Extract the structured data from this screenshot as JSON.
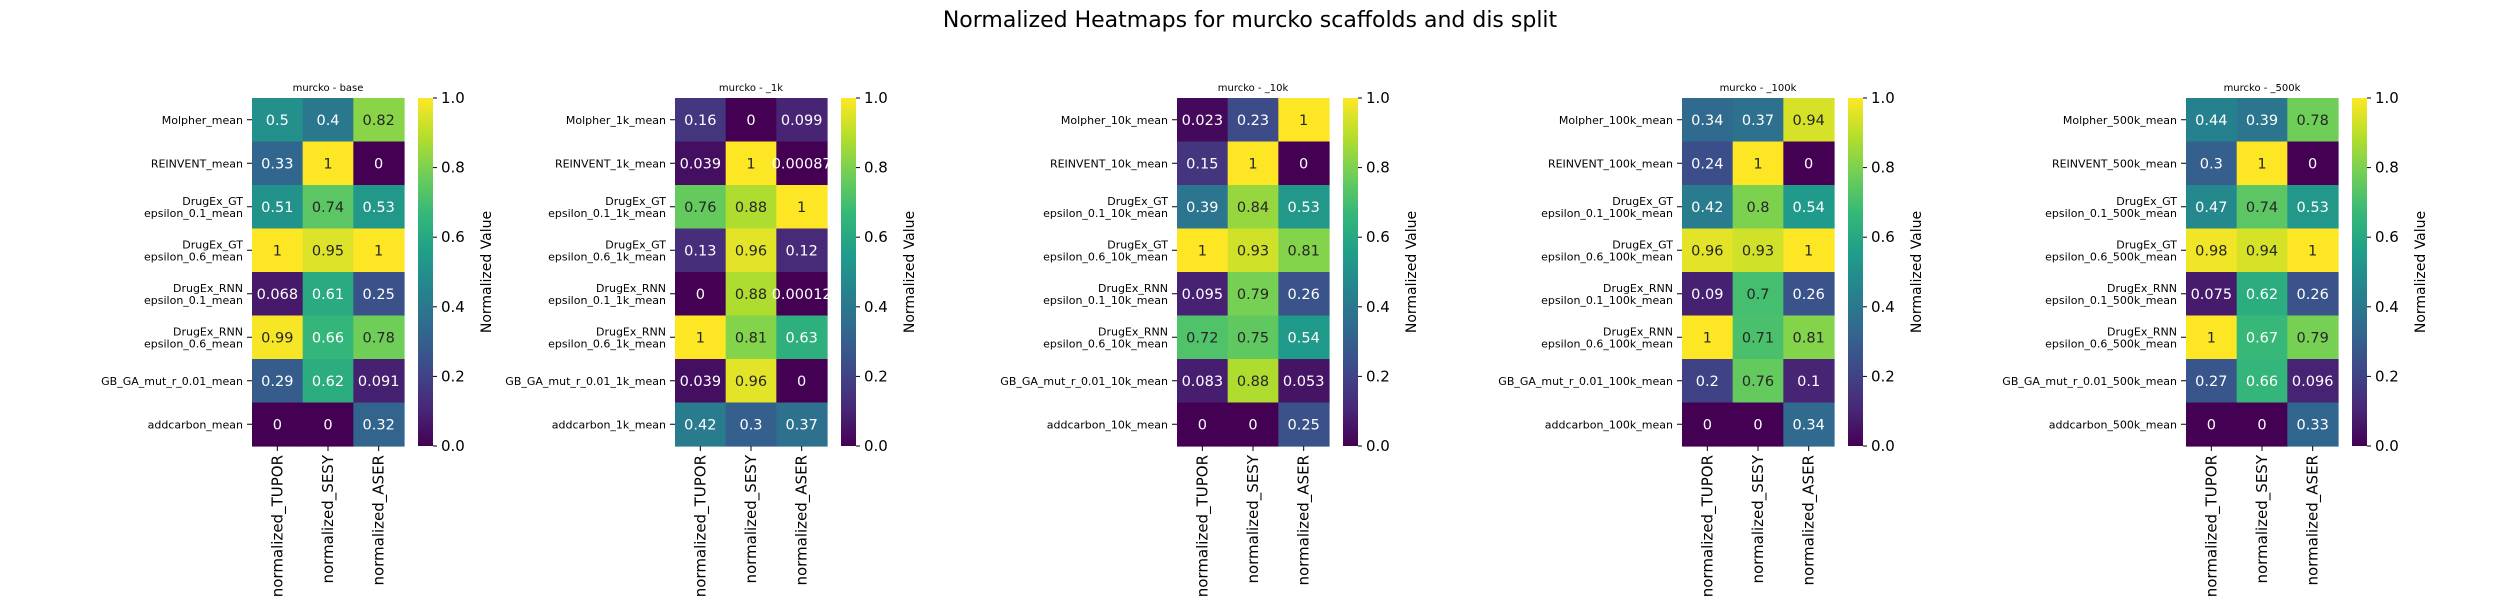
{
  "title": "Normalized Heatmaps for murcko scaffolds and dis split",
  "colormap": [
    "#440154",
    "#482878",
    "#3e4989",
    "#31688e",
    "#26828e",
    "#1f9e89",
    "#35b779",
    "#6ece58",
    "#b5de2b",
    "#fde725"
  ],
  "chart_data": [
    {
      "type": "heatmap",
      "title": "murcko - base",
      "columns": [
        "normalized_TUPOR",
        "normalized_SESY",
        "normalized_ASER"
      ],
      "rows": [
        [
          "Molpher_mean"
        ],
        [
          "REINVENT_mean"
        ],
        [
          "DrugEx_GT",
          "epsilon_0.1_mean"
        ],
        [
          "DrugEx_GT",
          "epsilon_0.6_mean"
        ],
        [
          "DrugEx_RNN",
          "epsilon_0.1_mean"
        ],
        [
          "DrugEx_RNN",
          "epsilon_0.6_mean"
        ],
        [
          "GB_GA_mut_r_0.01_mean"
        ],
        [
          "addcarbon_mean"
        ]
      ],
      "values": [
        [
          0.5,
          0.4,
          0.82
        ],
        [
          0.33,
          1,
          0
        ],
        [
          0.51,
          0.74,
          0.53
        ],
        [
          1,
          0.95,
          1
        ],
        [
          0.068,
          0.61,
          0.25
        ],
        [
          0.99,
          0.66,
          0.78
        ],
        [
          0.29,
          0.62,
          0.091
        ],
        [
          0,
          0,
          0.32
        ]
      ],
      "labels": [
        [
          "0.5",
          "0.4",
          "0.82"
        ],
        [
          "0.33",
          "1",
          "0"
        ],
        [
          "0.51",
          "0.74",
          "0.53"
        ],
        [
          "1",
          "0.95",
          "1"
        ],
        [
          "0.068",
          "0.61",
          "0.25"
        ],
        [
          "0.99",
          "0.66",
          "0.78"
        ],
        [
          "0.29",
          "0.62",
          "0.091"
        ],
        [
          "0",
          "0",
          "0.32"
        ]
      ],
      "colorbar": {
        "label": "Normalized Value",
        "range": [
          0,
          1
        ],
        "ticks": [
          "0.0",
          "0.2",
          "0.4",
          "0.6",
          "0.8",
          "1.0"
        ]
      }
    },
    {
      "type": "heatmap",
      "title": "murcko - _1k",
      "columns": [
        "normalized_TUPOR",
        "normalized_SESY",
        "normalized_ASER"
      ],
      "rows": [
        [
          "Molpher_1k_mean"
        ],
        [
          "REINVENT_1k_mean"
        ],
        [
          "DrugEx_GT",
          "epsilon_0.1_1k_mean"
        ],
        [
          "DrugEx_GT",
          "epsilon_0.6_1k_mean"
        ],
        [
          "DrugEx_RNN",
          "epsilon_0.1_1k_mean"
        ],
        [
          "DrugEx_RNN",
          "epsilon_0.6_1k_mean"
        ],
        [
          "GB_GA_mut_r_0.01_1k_mean"
        ],
        [
          "addcarbon_1k_mean"
        ]
      ],
      "values": [
        [
          0.16,
          0,
          0.099
        ],
        [
          0.039,
          1,
          0.00087
        ],
        [
          0.76,
          0.88,
          1
        ],
        [
          0.13,
          0.96,
          0.12
        ],
        [
          0,
          0.88,
          0.00012
        ],
        [
          1,
          0.81,
          0.63
        ],
        [
          0.039,
          0.96,
          0
        ],
        [
          0.42,
          0.3,
          0.37
        ]
      ],
      "labels": [
        [
          "0.16",
          "0",
          "0.099"
        ],
        [
          "0.039",
          "1",
          "0.00087"
        ],
        [
          "0.76",
          "0.88",
          "1"
        ],
        [
          "0.13",
          "0.96",
          "0.12"
        ],
        [
          "0",
          "0.88",
          "0.00012"
        ],
        [
          "1",
          "0.81",
          "0.63"
        ],
        [
          "0.039",
          "0.96",
          "0"
        ],
        [
          "0.42",
          "0.3",
          "0.37"
        ]
      ],
      "colorbar": {
        "label": "Normalized Value",
        "range": [
          0,
          1
        ],
        "ticks": [
          "0.0",
          "0.2",
          "0.4",
          "0.6",
          "0.8",
          "1.0"
        ]
      }
    },
    {
      "type": "heatmap",
      "title": "murcko - _10k",
      "columns": [
        "normalized_TUPOR",
        "normalized_SESY",
        "normalized_ASER"
      ],
      "rows": [
        [
          "Molpher_10k_mean"
        ],
        [
          "REINVENT_10k_mean"
        ],
        [
          "DrugEx_GT",
          "epsilon_0.1_10k_mean"
        ],
        [
          "DrugEx_GT",
          "epsilon_0.6_10k_mean"
        ],
        [
          "DrugEx_RNN",
          "epsilon_0.1_10k_mean"
        ],
        [
          "DrugEx_RNN",
          "epsilon_0.6_10k_mean"
        ],
        [
          "GB_GA_mut_r_0.01_10k_mean"
        ],
        [
          "addcarbon_10k_mean"
        ]
      ],
      "values": [
        [
          0.023,
          0.23,
          1
        ],
        [
          0.15,
          1,
          0
        ],
        [
          0.39,
          0.84,
          0.53
        ],
        [
          1,
          0.93,
          0.81
        ],
        [
          0.095,
          0.79,
          0.26
        ],
        [
          0.72,
          0.75,
          0.54
        ],
        [
          0.083,
          0.88,
          0.053
        ],
        [
          0,
          0,
          0.25
        ]
      ],
      "labels": [
        [
          "0.023",
          "0.23",
          "1"
        ],
        [
          "0.15",
          "1",
          "0"
        ],
        [
          "0.39",
          "0.84",
          "0.53"
        ],
        [
          "1",
          "0.93",
          "0.81"
        ],
        [
          "0.095",
          "0.79",
          "0.26"
        ],
        [
          "0.72",
          "0.75",
          "0.54"
        ],
        [
          "0.083",
          "0.88",
          "0.053"
        ],
        [
          "0",
          "0",
          "0.25"
        ]
      ],
      "colorbar": {
        "label": "Normalized Value",
        "range": [
          0,
          1
        ],
        "ticks": [
          "0.0",
          "0.2",
          "0.4",
          "0.6",
          "0.8",
          "1.0"
        ]
      }
    },
    {
      "type": "heatmap",
      "title": "murcko - _100k",
      "columns": [
        "normalized_TUPOR",
        "normalized_SESY",
        "normalized_ASER"
      ],
      "rows": [
        [
          "Molpher_100k_mean"
        ],
        [
          "REINVENT_100k_mean"
        ],
        [
          "DrugEx_GT",
          "epsilon_0.1_100k_mean"
        ],
        [
          "DrugEx_GT",
          "epsilon_0.6_100k_mean"
        ],
        [
          "DrugEx_RNN",
          "epsilon_0.1_100k_mean"
        ],
        [
          "DrugEx_RNN",
          "epsilon_0.6_100k_mean"
        ],
        [
          "GB_GA_mut_r_0.01_100k_mean"
        ],
        [
          "addcarbon_100k_mean"
        ]
      ],
      "values": [
        [
          0.34,
          0.37,
          0.94
        ],
        [
          0.24,
          1,
          0
        ],
        [
          0.42,
          0.8,
          0.54
        ],
        [
          0.96,
          0.93,
          1
        ],
        [
          0.09,
          0.7,
          0.26
        ],
        [
          1,
          0.71,
          0.81
        ],
        [
          0.2,
          0.76,
          0.1
        ],
        [
          0,
          0,
          0.34
        ]
      ],
      "labels": [
        [
          "0.34",
          "0.37",
          "0.94"
        ],
        [
          "0.24",
          "1",
          "0"
        ],
        [
          "0.42",
          "0.8",
          "0.54"
        ],
        [
          "0.96",
          "0.93",
          "1"
        ],
        [
          "0.09",
          "0.7",
          "0.26"
        ],
        [
          "1",
          "0.71",
          "0.81"
        ],
        [
          "0.2",
          "0.76",
          "0.1"
        ],
        [
          "0",
          "0",
          "0.34"
        ]
      ],
      "colorbar": {
        "label": "Normalized Value",
        "range": [
          0,
          1
        ],
        "ticks": [
          "0.0",
          "0.2",
          "0.4",
          "0.6",
          "0.8",
          "1.0"
        ]
      }
    },
    {
      "type": "heatmap",
      "title": "murcko - _500k",
      "columns": [
        "normalized_TUPOR",
        "normalized_SESY",
        "normalized_ASER"
      ],
      "rows": [
        [
          "Molpher_500k_mean"
        ],
        [
          "REINVENT_500k_mean"
        ],
        [
          "DrugEx_GT",
          "epsilon_0.1_500k_mean"
        ],
        [
          "DrugEx_GT",
          "epsilon_0.6_500k_mean"
        ],
        [
          "DrugEx_RNN",
          "epsilon_0.1_500k_mean"
        ],
        [
          "DrugEx_RNN",
          "epsilon_0.6_500k_mean"
        ],
        [
          "GB_GA_mut_r_0.01_500k_mean"
        ],
        [
          "addcarbon_500k_mean"
        ]
      ],
      "values": [
        [
          0.44,
          0.39,
          0.78
        ],
        [
          0.3,
          1,
          0
        ],
        [
          0.47,
          0.74,
          0.53
        ],
        [
          0.98,
          0.94,
          1
        ],
        [
          0.075,
          0.62,
          0.26
        ],
        [
          1,
          0.67,
          0.79
        ],
        [
          0.27,
          0.66,
          0.096
        ],
        [
          0,
          0,
          0.33
        ]
      ],
      "labels": [
        [
          "0.44",
          "0.39",
          "0.78"
        ],
        [
          "0.3",
          "1",
          "0"
        ],
        [
          "0.47",
          "0.74",
          "0.53"
        ],
        [
          "0.98",
          "0.94",
          "1"
        ],
        [
          "0.075",
          "0.62",
          "0.26"
        ],
        [
          "1",
          "0.67",
          "0.79"
        ],
        [
          "0.27",
          "0.66",
          "0.096"
        ],
        [
          "0",
          "0",
          "0.33"
        ]
      ],
      "colorbar": {
        "label": "Normalized Value",
        "range": [
          0,
          1
        ],
        "ticks": [
          "0.0",
          "0.2",
          "0.4",
          "0.6",
          "0.8",
          "1.0"
        ]
      }
    }
  ]
}
